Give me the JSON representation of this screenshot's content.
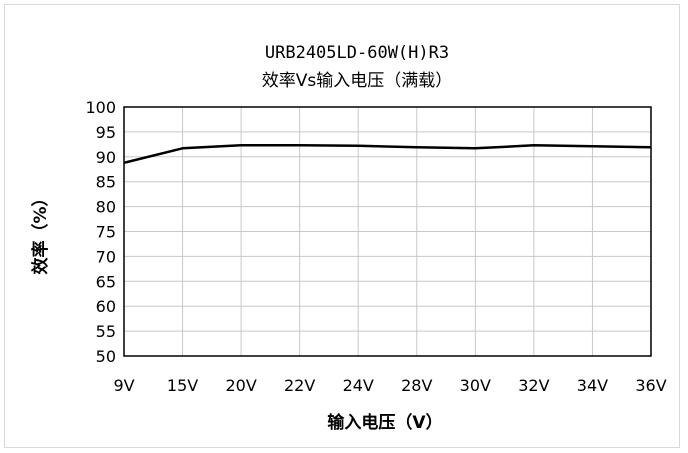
{
  "chart_data": {
    "type": "line",
    "title": "URB2405LD-60W(H)R3",
    "subtitle": "效率Vs输入电压（满载）",
    "xlabel": "输入电压（V）",
    "ylabel": "效率（%）",
    "categories": [
      "9V",
      "15V",
      "20V",
      "22V",
      "24V",
      "28V",
      "30V",
      "32V",
      "34V",
      "36V"
    ],
    "ylim": [
      50,
      100
    ],
    "yticks": [
      "50",
      "55",
      "60",
      "65",
      "70",
      "75",
      "80",
      "85",
      "90",
      "95",
      "100"
    ],
    "grid": true,
    "legend": "none",
    "series": [
      {
        "values": [
          88.8,
          91.7,
          92.3,
          92.3,
          92.2,
          91.9,
          91.7,
          92.3,
          92.1,
          91.9
        ],
        "color": "#000000"
      }
    ]
  }
}
